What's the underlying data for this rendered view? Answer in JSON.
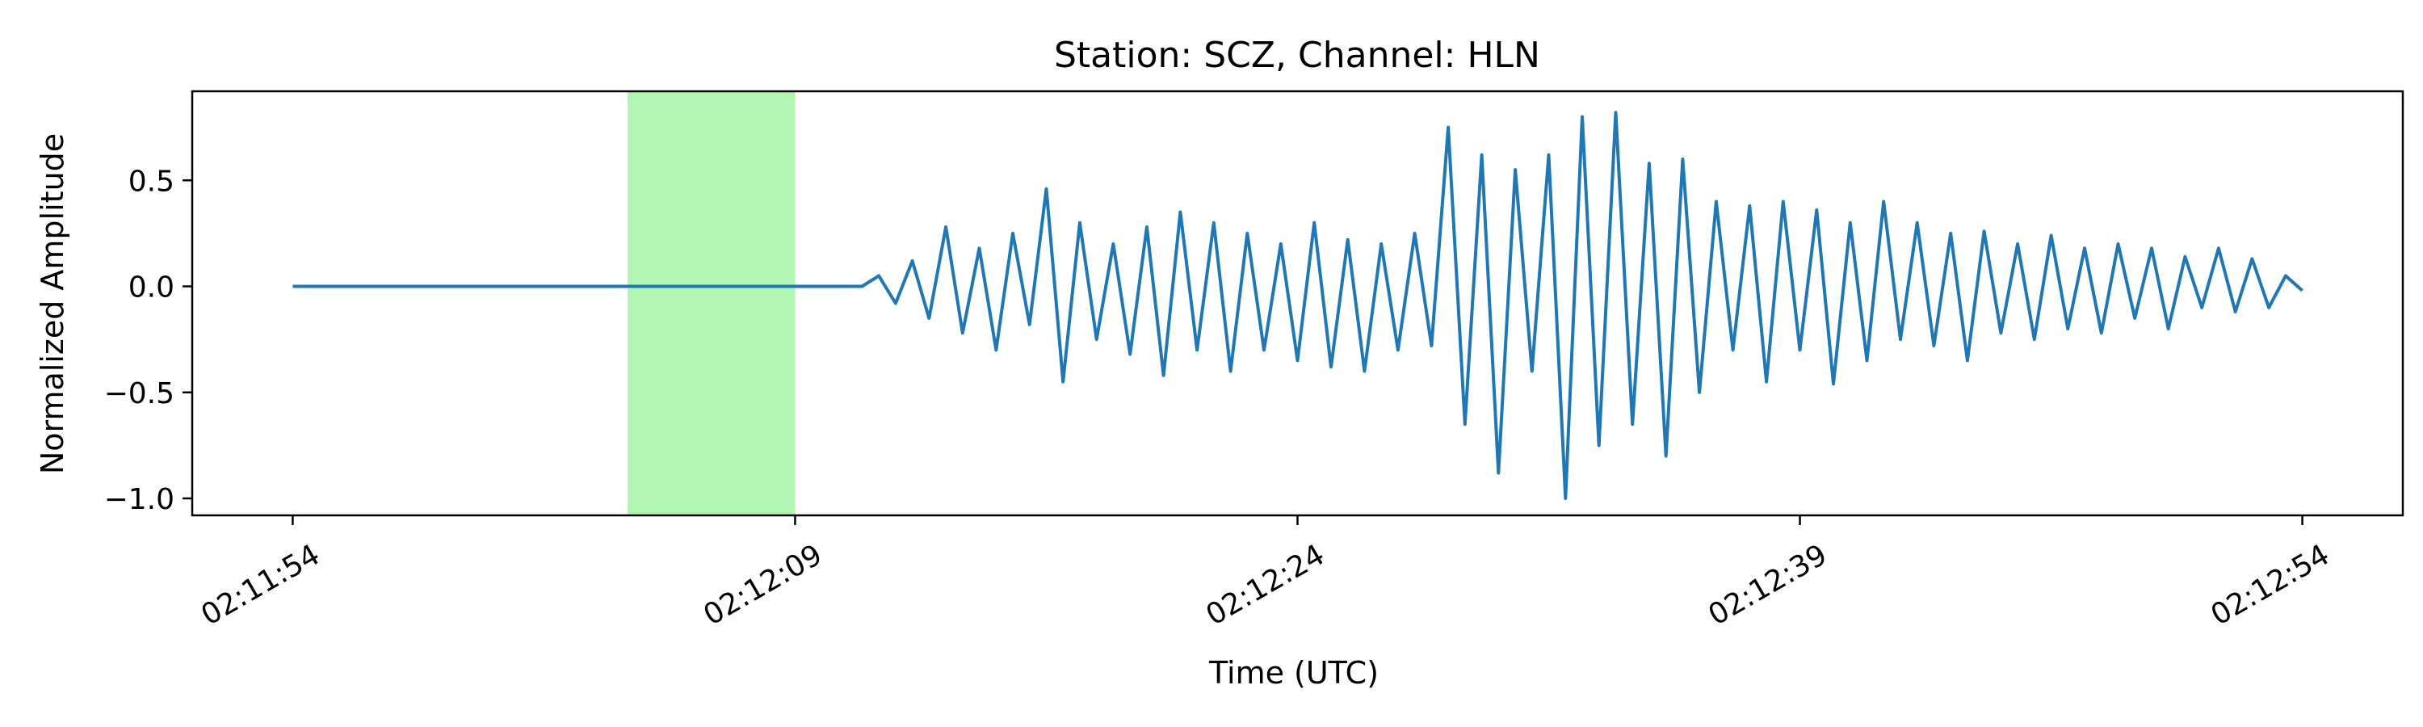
{
  "chart_data": {
    "type": "line",
    "title": "Station: SCZ, Channel: HLN",
    "xlabel": "Time (UTC)",
    "ylabel": "Normalized Amplitude",
    "x_ticks": [
      "02:11:54",
      "02:12:09",
      "02:12:24",
      "02:12:39",
      "02:12:54"
    ],
    "y_ticks": [
      "0.5",
      "0.0",
      "−0.5",
      "−1.0"
    ],
    "xlim": [
      "02:11:51",
      "02:12:57"
    ],
    "ylim": [
      -1.08,
      0.92
    ],
    "grid": false,
    "highlight_window": {
      "start": "02:12:04",
      "end": "02:12:09",
      "color": "#b3f5b3"
    },
    "series": [
      {
        "color": "#1f77b4",
        "x": [
          "02:11:54",
          "02:11:58",
          "02:12:02",
          "02:12:06",
          "02:12:09",
          "02:12:11",
          "02:12:11.5",
          "02:12:12",
          "02:12:12.5",
          "02:12:13",
          "02:12:13.5",
          "02:12:14",
          "02:12:14.5",
          "02:12:15",
          "02:12:15.5",
          "02:12:16",
          "02:12:16.5",
          "02:12:17",
          "02:12:17.5",
          "02:12:18",
          "02:12:18.5",
          "02:12:19",
          "02:12:19.5",
          "02:12:20",
          "02:12:20.5",
          "02:12:21",
          "02:12:21.5",
          "02:12:22",
          "02:12:22.5",
          "02:12:23",
          "02:12:23.5",
          "02:12:24",
          "02:12:24.5",
          "02:12:25",
          "02:12:25.5",
          "02:12:26",
          "02:12:26.5",
          "02:12:27",
          "02:12:27.5",
          "02:12:28",
          "02:12:28.5",
          "02:12:29",
          "02:12:29.5",
          "02:12:30",
          "02:12:30.5",
          "02:12:31",
          "02:12:31.5",
          "02:12:32",
          "02:12:32.5",
          "02:12:33",
          "02:12:33.5",
          "02:12:34",
          "02:12:34.5",
          "02:12:35",
          "02:12:35.5",
          "02:12:36",
          "02:12:36.5",
          "02:12:37",
          "02:12:37.5",
          "02:12:38",
          "02:12:38.5",
          "02:12:39",
          "02:12:39.5",
          "02:12:40",
          "02:12:40.5",
          "02:12:41",
          "02:12:41.5",
          "02:12:42",
          "02:12:42.5",
          "02:12:43",
          "02:12:43.5",
          "02:12:44",
          "02:12:44.5",
          "02:12:45",
          "02:12:45.5",
          "02:12:46",
          "02:12:46.5",
          "02:12:47",
          "02:12:47.5",
          "02:12:48",
          "02:12:48.5",
          "02:12:49",
          "02:12:49.5",
          "02:12:50",
          "02:12:50.5",
          "02:12:51",
          "02:12:51.5",
          "02:12:52",
          "02:12:52.5",
          "02:12:53",
          "02:12:53.5",
          "02:12:54"
        ],
        "y": [
          0.0,
          0.0,
          0.0,
          0.0,
          0.0,
          0.0,
          0.05,
          -0.08,
          0.12,
          -0.15,
          0.28,
          -0.22,
          0.18,
          -0.3,
          0.25,
          -0.18,
          0.46,
          -0.45,
          0.3,
          -0.25,
          0.2,
          -0.32,
          0.28,
          -0.42,
          0.35,
          -0.3,
          0.3,
          -0.4,
          0.25,
          -0.3,
          0.2,
          -0.35,
          0.3,
          -0.38,
          0.22,
          -0.4,
          0.2,
          -0.3,
          0.25,
          -0.28,
          0.75,
          -0.65,
          0.62,
          -0.88,
          0.55,
          -0.4,
          0.62,
          -1.0,
          0.8,
          -0.75,
          0.82,
          -0.65,
          0.58,
          -0.8,
          0.6,
          -0.5,
          0.4,
          -0.3,
          0.38,
          -0.45,
          0.4,
          -0.3,
          0.36,
          -0.46,
          0.3,
          -0.35,
          0.4,
          -0.25,
          0.3,
          -0.28,
          0.25,
          -0.35,
          0.26,
          -0.22,
          0.2,
          -0.25,
          0.24,
          -0.2,
          0.18,
          -0.22,
          0.2,
          -0.15,
          0.18,
          -0.2,
          0.14,
          -0.1,
          0.18,
          -0.12,
          0.13,
          -0.1,
          0.05,
          -0.02
        ]
      }
    ]
  }
}
